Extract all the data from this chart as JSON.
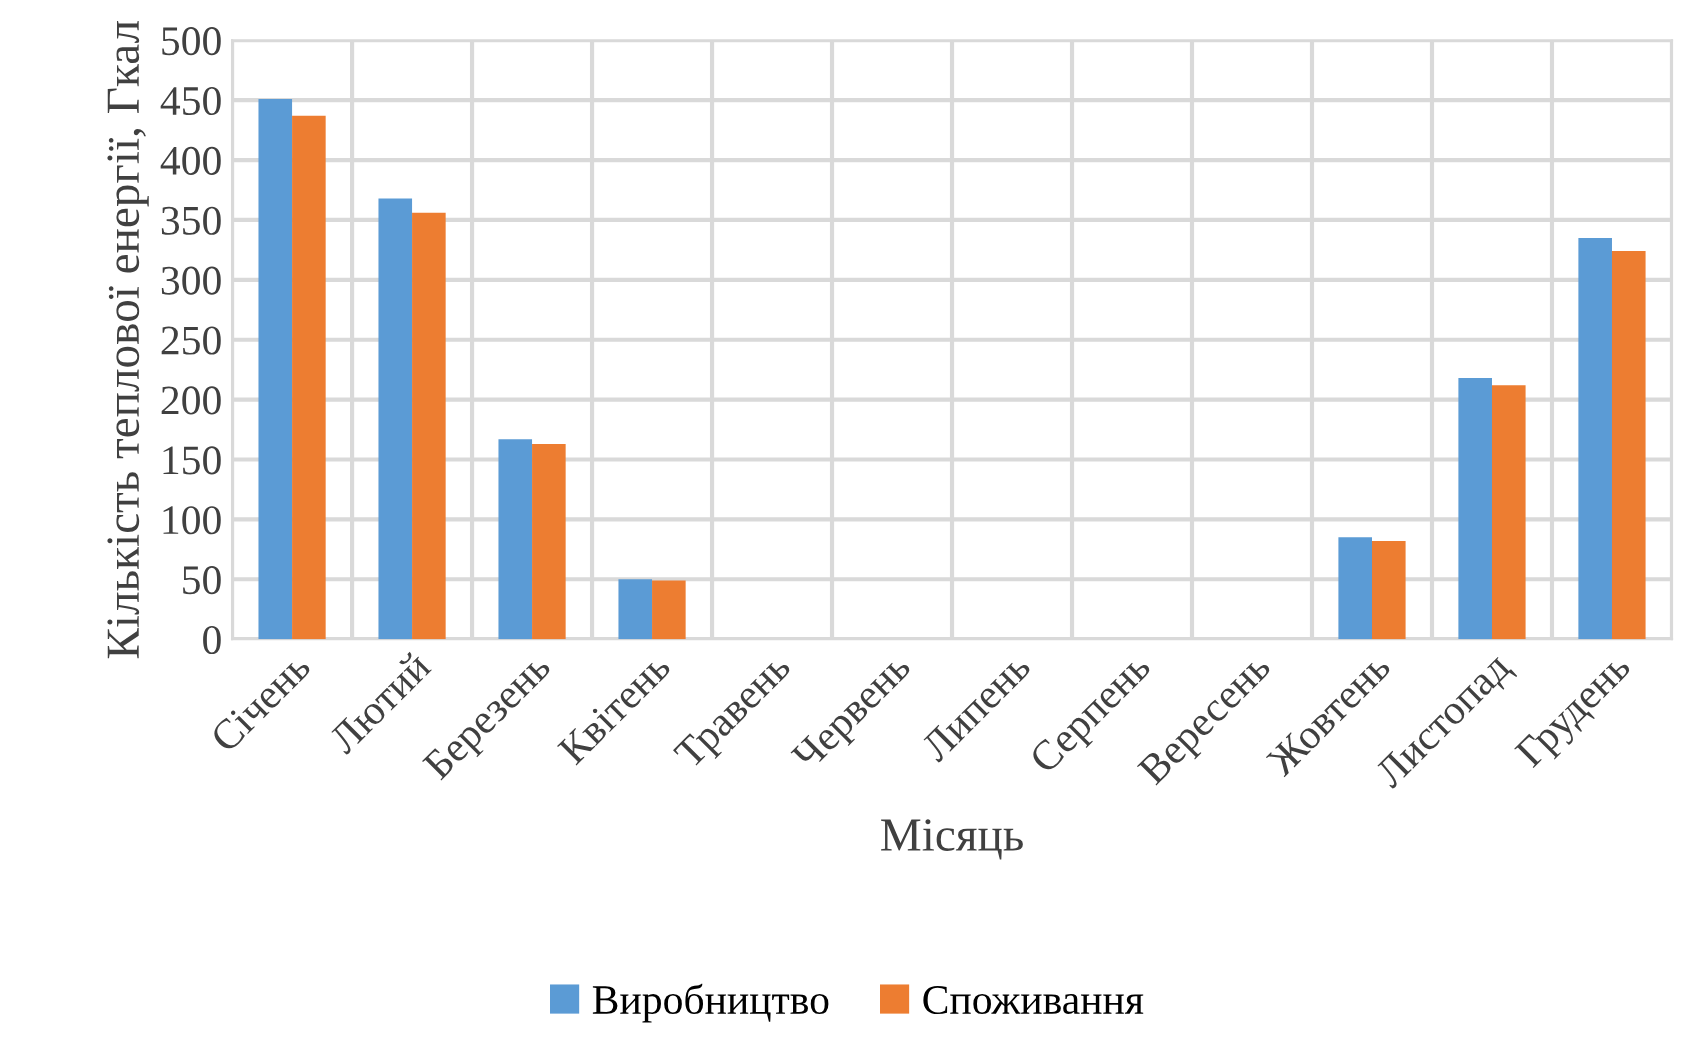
{
  "chart_data": {
    "type": "bar",
    "xlabel": "Місяць",
    "ylabel": "Кількість теплової енергії, Гкал",
    "categories": [
      "Січень",
      "Лютий",
      "Березень",
      "Квітень",
      "Травень",
      "Червень",
      "Липень",
      "Серпень",
      "Вересень",
      "Жовтень",
      "Листопад",
      "Грудень"
    ],
    "series": [
      {
        "name": "Виробництво",
        "color": "#5b9bd5",
        "values": [
          451,
          368,
          167,
          50,
          0,
          0,
          0,
          0,
          0,
          85,
          218,
          335
        ]
      },
      {
        "name": "Споживання",
        "color": "#ed7d31",
        "values": [
          437,
          356,
          163,
          49,
          0,
          0,
          0,
          0,
          0,
          82,
          212,
          324
        ]
      }
    ],
    "ylim": [
      0,
      500
    ],
    "yticks": [
      0,
      50,
      100,
      150,
      200,
      250,
      300,
      350,
      400,
      450,
      500
    ],
    "grid": true,
    "legend": "bottom"
  }
}
